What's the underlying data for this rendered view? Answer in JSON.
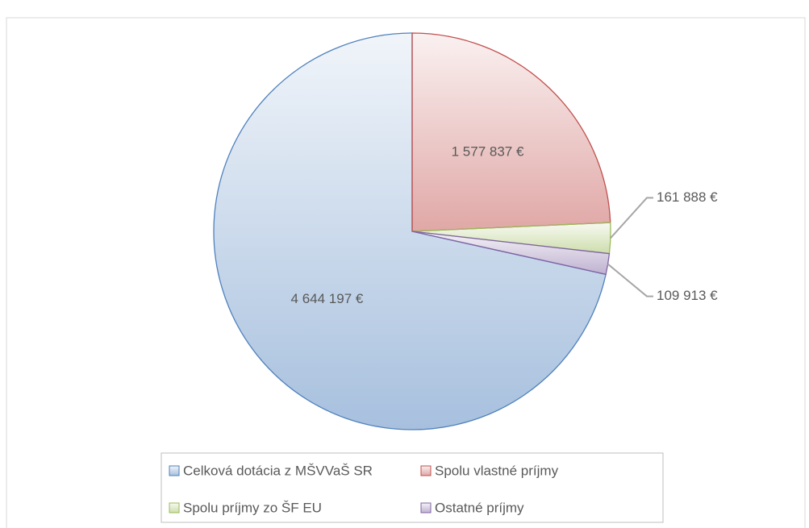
{
  "chart_data": {
    "type": "pie",
    "categories": [
      "Celková dotácia z MŠVVaŠ SR",
      "Spolu vlastné príjmy",
      "Spolu príjmy zo ŠF EU",
      "Ostatné príjmy"
    ],
    "values": [
      4644197,
      1577837,
      161888,
      109913
    ],
    "value_labels": [
      "4 644 197 €",
      "1 577 837 €",
      "161 888 €",
      "109 913 €"
    ],
    "colors": [
      "#4f81bd",
      "#c0504d",
      "#9bbb59",
      "#8064a2"
    ],
    "legend": "bottom"
  }
}
